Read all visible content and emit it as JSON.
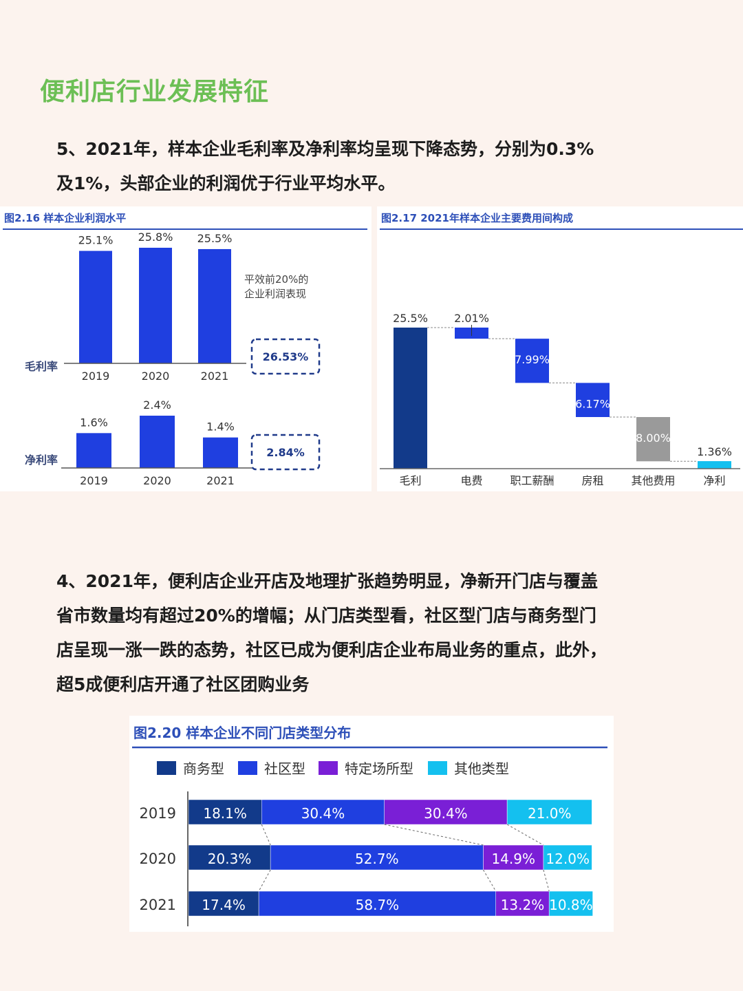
{
  "page": {
    "title": "便利店行业发展特征",
    "para1_lines": [
      "5、2021年，样本企业毛利率及净利率均呈现下降态势，分别为0.3%",
      "及1%，头部企业的利润优于行业平均水平。"
    ],
    "para2_lines": [
      "4、2021年，便利店企业开店及地理扩张趋势明显，净新开门店与覆盖",
      "省市数量均有超过20%的增幅；从门店类型看，社区型门店与商务型门",
      "店呈现一涨一跌的态势，社区已成为便利店企业布局业务的重点，此外，",
      "超5成便利店开通了社区团购业务"
    ]
  },
  "colors": {
    "title_green": "#6cbf55",
    "fig_title_blue": "#2d4fb8",
    "bar_blue": "#1f3fe0",
    "navy": "#123a8a",
    "purple": "#7a1fd6",
    "cyan": "#14c0ef",
    "grey": "#9a9a9a"
  },
  "chart_data": [
    {
      "type": "bar",
      "title": "图2.16 样本企业利润水平",
      "annotation": "平效前20%的\n企业利润表现",
      "panels": [
        {
          "label": "毛利率",
          "categories": [
            "2019",
            "2020",
            "2021"
          ],
          "values": [
            25.1,
            25.8,
            25.5
          ],
          "value_labels": [
            "25.1%",
            "25.8%",
            "25.5%"
          ],
          "top20_value": "26.53%"
        },
        {
          "label": "净利率",
          "categories": [
            "2019",
            "2020",
            "2021"
          ],
          "values": [
            1.6,
            2.4,
            1.4
          ],
          "value_labels": [
            "1.6%",
            "2.4%",
            "1.4%"
          ],
          "top20_value": "2.84%"
        }
      ]
    },
    {
      "type": "bar",
      "subtype": "waterfall",
      "title": "图2.17 2021年样本企业主要费用间构成",
      "categories": [
        "毛利",
        "电费",
        "职工薪酬",
        "房租",
        "其他费用",
        "净利"
      ],
      "values": [
        25.5,
        2.01,
        7.99,
        6.17,
        8.0,
        1.36
      ],
      "value_labels": [
        "25.5%",
        "2.01%",
        "7.99%",
        "6.17%",
        "8.00%",
        "1.36%"
      ],
      "kinds": [
        "total",
        "decrease",
        "decrease",
        "decrease",
        "decrease",
        "total"
      ]
    },
    {
      "type": "bar",
      "subtype": "stacked-horizontal-100",
      "title": "图2.20 样本企业不同门店类型分布",
      "legend_position": "top",
      "categories": [
        "2019",
        "2020",
        "2021"
      ],
      "series": [
        {
          "name": "商务型",
          "values": [
            18.1,
            20.3,
            17.4
          ],
          "labels": [
            "18.1%",
            "20.3%",
            "17.4%"
          ]
        },
        {
          "name": "社区型",
          "values": [
            30.4,
            52.7,
            58.7
          ],
          "labels": [
            "30.4%",
            "52.7%",
            "58.7%"
          ]
        },
        {
          "name": "特定场所型",
          "values": [
            30.4,
            14.9,
            13.2
          ],
          "labels": [
            "30.4%",
            "14.9%",
            "13.2%"
          ]
        },
        {
          "name": "其他类型",
          "values": [
            21.0,
            12.0,
            10.8
          ],
          "labels": [
            "21.0%",
            "12.0%",
            "10.8%"
          ]
        }
      ]
    }
  ]
}
